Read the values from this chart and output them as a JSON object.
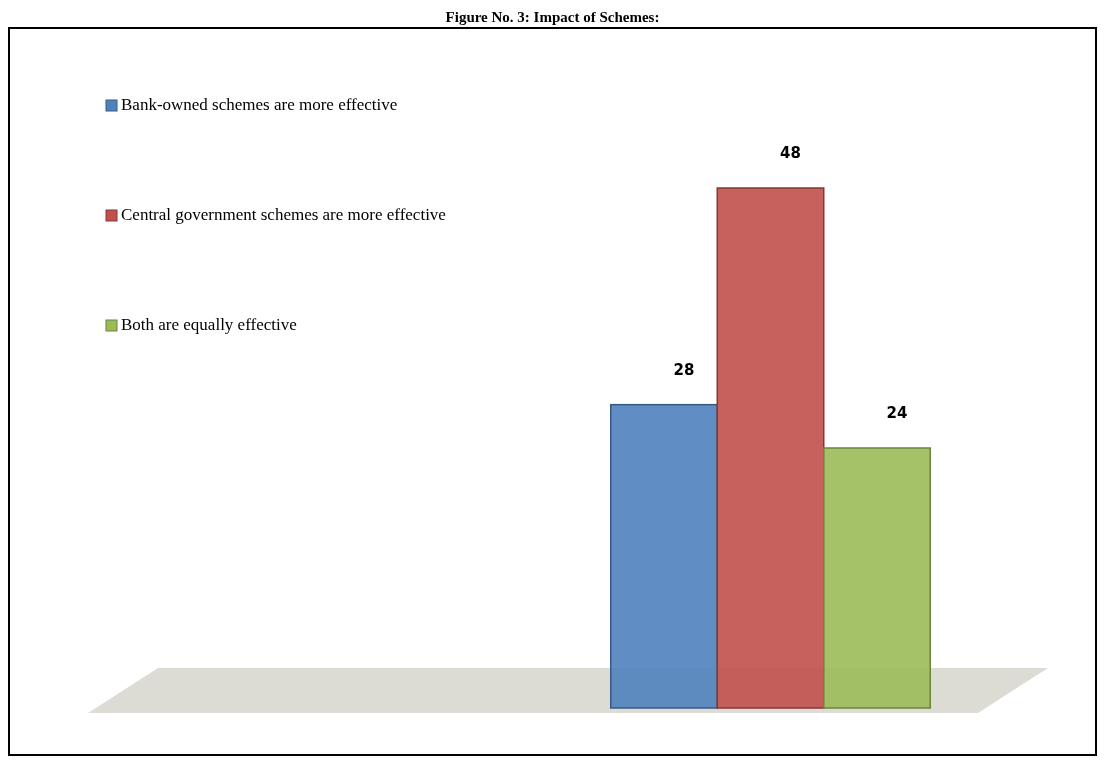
{
  "chart_data": {
    "type": "bar",
    "title": "Figure No. 3: Impact of Schemes:",
    "categories": [
      null
    ],
    "series": [
      {
        "name": "Bank-owned schemes are more effective",
        "color": "#4f81bd",
        "values": [
          28
        ]
      },
      {
        "name": "Central government schemes are more effective",
        "color": "#c0504d",
        "values": [
          48
        ]
      },
      {
        "name": "Both are equally effective",
        "color": "#9bbb59",
        "values": [
          24
        ]
      }
    ],
    "data_labels": true,
    "legend": "top left"
  }
}
